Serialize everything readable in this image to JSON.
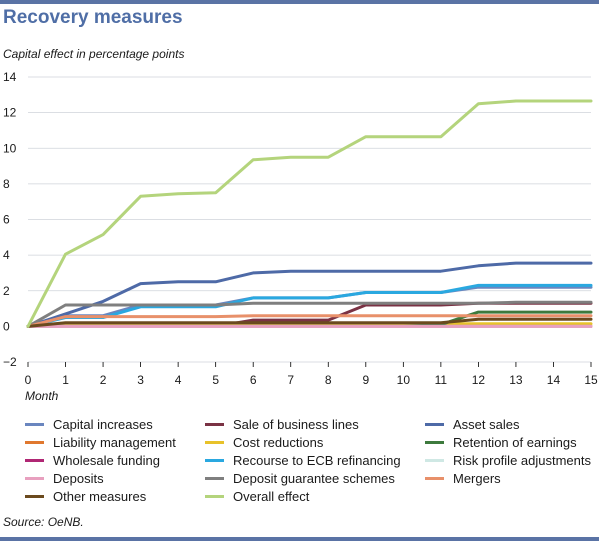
{
  "header": {
    "title": "Recovery measures",
    "subtitle": "Capital effect in percentage points"
  },
  "footer": {
    "source": "Source: OeNB."
  },
  "chart_data": {
    "type": "line",
    "xlabel": "Month",
    "ylabel": "Capital effect in percentage points",
    "x": [
      0,
      1,
      2,
      3,
      4,
      5,
      6,
      7,
      8,
      9,
      10,
      11,
      12,
      13,
      14,
      15
    ],
    "xlim": [
      0,
      15
    ],
    "ylim": [
      -2,
      14
    ],
    "yticks": [
      -2,
      0,
      2,
      4,
      6,
      8,
      10,
      12,
      14
    ],
    "xticks": [
      0,
      1,
      2,
      3,
      4,
      5,
      6,
      7,
      8,
      9,
      10,
      11,
      12,
      13,
      14,
      15
    ],
    "grid": "horizontal",
    "legend_position": "bottom",
    "series": [
      {
        "name": "Capital increases",
        "color": "#6a86bf",
        "values": [
          0,
          0.6,
          0.6,
          1.2,
          1.2,
          1.2,
          1.6,
          1.6,
          1.6,
          1.9,
          1.9,
          1.9,
          2.2,
          2.2,
          2.2,
          2.2
        ]
      },
      {
        "name": "Sale of business lines",
        "color": "#7a3244",
        "values": [
          0,
          0,
          0,
          0,
          0,
          0,
          0.35,
          0.35,
          0.35,
          1.2,
          1.2,
          1.2,
          1.3,
          1.3,
          1.3,
          1.3
        ]
      },
      {
        "name": "Asset sales",
        "color": "#4e6aa7",
        "values": [
          0,
          0.7,
          1.4,
          2.4,
          2.5,
          2.5,
          3.0,
          3.1,
          3.1,
          3.1,
          3.1,
          3.1,
          3.4,
          3.55,
          3.55,
          3.55
        ]
      },
      {
        "name": "Liability management",
        "color": "#e0782e",
        "values": [
          0,
          0,
          0,
          0,
          0,
          0,
          0,
          0,
          0,
          0,
          0,
          0,
          0,
          0,
          0,
          0
        ]
      },
      {
        "name": "Cost reductions",
        "color": "#e8c22a",
        "values": [
          0,
          0.15,
          0.15,
          0.15,
          0.15,
          0.15,
          0.15,
          0.15,
          0.15,
          0.15,
          0.15,
          0.15,
          0.15,
          0.15,
          0.15,
          0.15
        ]
      },
      {
        "name": "Retention of earnings",
        "color": "#3d7a3d",
        "values": [
          0,
          0,
          0,
          0,
          0,
          0,
          0,
          0,
          0,
          0,
          0,
          0.1,
          0.8,
          0.8,
          0.8,
          0.8
        ]
      },
      {
        "name": "Wholesale funding",
        "color": "#b02774",
        "values": [
          0,
          0,
          0,
          0,
          0,
          0,
          0,
          0,
          0,
          0,
          0,
          0,
          0,
          0,
          0,
          0
        ]
      },
      {
        "name": "Recourse to ECB refinancing",
        "color": "#2aa8e0",
        "values": [
          0,
          0.5,
          0.5,
          1.1,
          1.1,
          1.1,
          1.6,
          1.6,
          1.6,
          1.9,
          1.9,
          1.9,
          2.3,
          2.3,
          2.3,
          2.3
        ]
      },
      {
        "name": "Risk profile adjustments",
        "color": "#cfe8e4",
        "values": [
          0,
          0,
          0,
          0,
          0,
          0,
          0,
          0,
          0,
          0,
          0,
          0,
          0,
          0,
          0,
          0
        ]
      },
      {
        "name": "Deposits",
        "color": "#e8a0bf",
        "values": [
          0,
          0,
          0,
          0,
          0,
          0,
          0,
          0,
          0,
          0,
          0,
          0,
          0,
          0,
          0,
          0
        ]
      },
      {
        "name": "Deposit guarantee schemes",
        "color": "#7f7f7f",
        "values": [
          0,
          1.2,
          1.2,
          1.2,
          1.2,
          1.2,
          1.3,
          1.3,
          1.3,
          1.3,
          1.3,
          1.3,
          1.3,
          1.35,
          1.35,
          1.35
        ]
      },
      {
        "name": "Mergers",
        "color": "#e8906a",
        "values": [
          0,
          0.55,
          0.55,
          0.55,
          0.55,
          0.55,
          0.6,
          0.6,
          0.6,
          0.6,
          0.6,
          0.6,
          0.6,
          0.6,
          0.6,
          0.6
        ]
      },
      {
        "name": "Other measures",
        "color": "#6b4a1e",
        "values": [
          0,
          0.2,
          0.2,
          0.2,
          0.2,
          0.2,
          0.2,
          0.2,
          0.2,
          0.2,
          0.2,
          0.2,
          0.4,
          0.4,
          0.4,
          0.4
        ]
      },
      {
        "name": "Overall effect",
        "color": "#b4d47c",
        "values": [
          0,
          4.05,
          5.15,
          7.3,
          7.45,
          7.5,
          9.35,
          9.5,
          9.5,
          10.65,
          10.65,
          10.65,
          12.5,
          12.65,
          12.65,
          12.65
        ]
      }
    ]
  }
}
